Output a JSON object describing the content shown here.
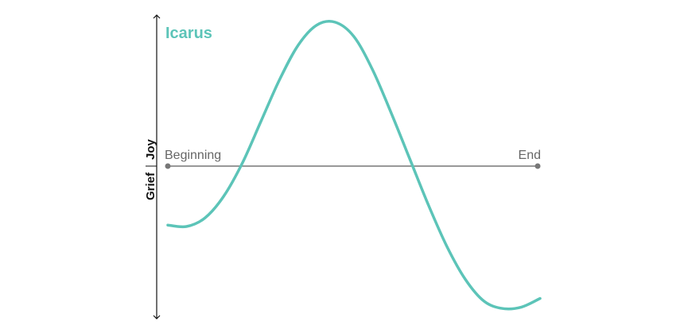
{
  "chart_data": {
    "type": "line",
    "title": "Icarus",
    "x_axis": {
      "start_label": "Beginning",
      "end_label": "End",
      "range": [
        0,
        1
      ]
    },
    "y_axis": {
      "top_label": "Joy",
      "bottom_label": "Grief",
      "range": [
        -1,
        1
      ]
    },
    "series": [
      {
        "name": "Icarus",
        "color": "#5cc4b8",
        "x": [
          0,
          0.05,
          0.1,
          0.15,
          0.2,
          0.25,
          0.3,
          0.35,
          0.4,
          0.45,
          0.5,
          0.55,
          0.6,
          0.65,
          0.7,
          0.75,
          0.8,
          0.85,
          0.9,
          0.95,
          1
        ],
        "y": [
          -0.41,
          -0.42,
          -0.36,
          -0.21,
          0.02,
          0.31,
          0.6,
          0.84,
          0.98,
          1.0,
          0.9,
          0.67,
          0.37,
          0.05,
          -0.27,
          -0.56,
          -0.79,
          -0.94,
          -0.99,
          -0.98,
          -0.92
        ]
      }
    ],
    "colors": {
      "baseline": "#777777",
      "axis": "#111111",
      "labels": "#666666"
    },
    "grid": false,
    "legend": "none"
  }
}
